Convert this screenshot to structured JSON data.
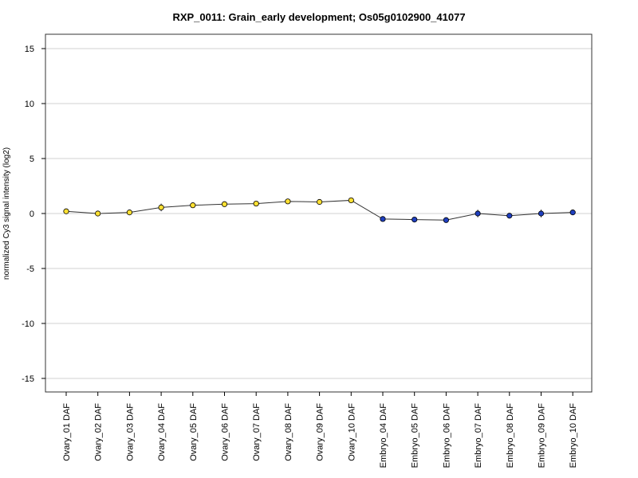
{
  "chart_data": {
    "type": "line",
    "title": "RXP_0011: Grain_early development; Os05g0102900_41077",
    "xlabel": "",
    "ylabel": "normalized Cy3 signal intensity (log2)",
    "ylim": [
      -16,
      16
    ],
    "yticks": [
      -15,
      -10,
      -5,
      0,
      5,
      10,
      15
    ],
    "grid": true,
    "categories": [
      "Ovary_01 DAF",
      "Ovary_02 DAF",
      "Ovary_03 DAF",
      "Ovary_04 DAF",
      "Ovary_05 DAF",
      "Ovary_06 DAF",
      "Ovary_07 DAF",
      "Ovary_08 DAF",
      "Ovary_09 DAF",
      "Ovary_10 DAF",
      "Embryo_04 DAF",
      "Embryo_05 DAF",
      "Embryo_06 DAF",
      "Embryo_07 DAF",
      "Embryo_08 DAF",
      "Embryo_09 DAF",
      "Embryo_10 DAF"
    ],
    "values": [
      0.2,
      0.0,
      0.1,
      0.55,
      0.75,
      0.85,
      0.9,
      1.1,
      1.05,
      1.2,
      -0.5,
      -0.55,
      -0.6,
      0.0,
      -0.2,
      0.0,
      0.1
    ],
    "errors": [
      0.1,
      0.05,
      0.05,
      0.35,
      0.1,
      0.1,
      0.1,
      0.1,
      0.1,
      0.15,
      0.1,
      0.1,
      0.1,
      0.35,
      0.1,
      0.35,
      0.15
    ],
    "point_colors": [
      "#ffe033",
      "#ffe033",
      "#ffe033",
      "#ffe033",
      "#ffe033",
      "#ffe033",
      "#ffe033",
      "#ffe033",
      "#ffe033",
      "#ffe033",
      "#1f3fbf",
      "#1f3fbf",
      "#1f3fbf",
      "#1f3fbf",
      "#1f3fbf",
      "#1f3fbf",
      "#1f3fbf"
    ]
  }
}
